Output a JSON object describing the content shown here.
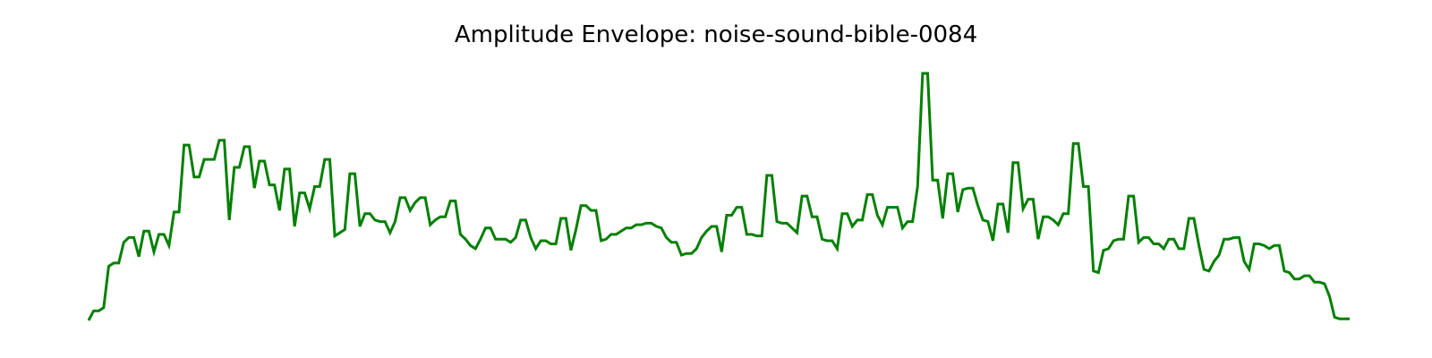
{
  "chart_data": {
    "type": "line",
    "title": "Amplitude Envelope: noise-sound-bible-0084",
    "xlabel": "",
    "ylabel": "",
    "axes_visible": false,
    "grid": false,
    "line_color": "#008000",
    "y": [
      -0.05,
      0.01,
      0.01,
      0.03,
      0.29,
      0.31,
      0.31,
      0.44,
      0.47,
      0.47,
      0.35,
      0.51,
      0.51,
      0.38,
      0.49,
      0.49,
      0.42,
      0.63,
      0.63,
      1.05,
      1.05,
      0.85,
      0.85,
      0.96,
      0.96,
      0.96,
      1.08,
      1.08,
      0.58,
      0.91,
      0.91,
      1.04,
      1.04,
      0.78,
      0.95,
      0.95,
      0.8,
      0.8,
      0.64,
      0.9,
      0.9,
      0.54,
      0.75,
      0.75,
      0.65,
      0.79,
      0.79,
      0.96,
      0.96,
      0.48,
      0.5,
      0.52,
      0.87,
      0.87,
      0.54,
      0.62,
      0.62,
      0.58,
      0.57,
      0.57,
      0.5,
      0.57,
      0.72,
      0.72,
      0.64,
      0.69,
      0.72,
      0.72,
      0.55,
      0.58,
      0.6,
      0.6,
      0.7,
      0.7,
      0.49,
      0.46,
      0.42,
      0.4,
      0.46,
      0.53,
      0.53,
      0.46,
      0.46,
      0.46,
      0.44,
      0.47,
      0.58,
      0.58,
      0.47,
      0.4,
      0.45,
      0.45,
      0.43,
      0.43,
      0.59,
      0.59,
      0.39,
      0.52,
      0.67,
      0.67,
      0.64,
      0.64,
      0.45,
      0.46,
      0.49,
      0.49,
      0.51,
      0.53,
      0.53,
      0.55,
      0.55,
      0.56,
      0.56,
      0.54,
      0.53,
      0.47,
      0.44,
      0.44,
      0.36,
      0.37,
      0.37,
      0.4,
      0.47,
      0.51,
      0.54,
      0.54,
      0.38,
      0.61,
      0.61,
      0.66,
      0.66,
      0.49,
      0.49,
      0.48,
      0.48,
      0.86,
      0.86,
      0.57,
      0.56,
      0.56,
      0.53,
      0.5,
      0.73,
      0.73,
      0.6,
      0.6,
      0.46,
      0.45,
      0.45,
      0.4,
      0.62,
      0.62,
      0.54,
      0.58,
      0.58,
      0.74,
      0.74,
      0.61,
      0.55,
      0.66,
      0.66,
      0.66,
      0.53,
      0.57,
      0.57,
      0.79,
      1.5,
      1.5,
      0.83,
      0.83,
      0.59,
      0.87,
      0.87,
      0.63,
      0.77,
      0.78,
      0.78,
      0.67,
      0.58,
      0.57,
      0.45,
      0.68,
      0.68,
      0.5,
      0.94,
      0.94,
      0.65,
      0.71,
      0.71,
      0.46,
      0.6,
      0.6,
      0.58,
      0.55,
      0.62,
      0.62,
      1.06,
      1.06,
      0.79,
      0.79,
      0.26,
      0.25,
      0.39,
      0.4,
      0.45,
      0.46,
      0.46,
      0.73,
      0.73,
      0.44,
      0.47,
      0.47,
      0.43,
      0.43,
      0.4,
      0.46,
      0.46,
      0.4,
      0.4,
      0.59,
      0.59,
      0.42,
      0.27,
      0.26,
      0.32,
      0.36,
      0.46,
      0.46,
      0.47,
      0.47,
      0.32,
      0.27,
      0.43,
      0.43,
      0.42,
      0.4,
      0.42,
      0.42,
      0.26,
      0.25,
      0.21,
      0.21,
      0.23,
      0.23,
      0.19,
      0.19,
      0.18,
      0.1,
      -0.03,
      -0.04,
      -0.04,
      -0.04
    ],
    "x_range": [
      0,
      1
    ],
    "ylim": [
      -0.1,
      1.6
    ]
  }
}
